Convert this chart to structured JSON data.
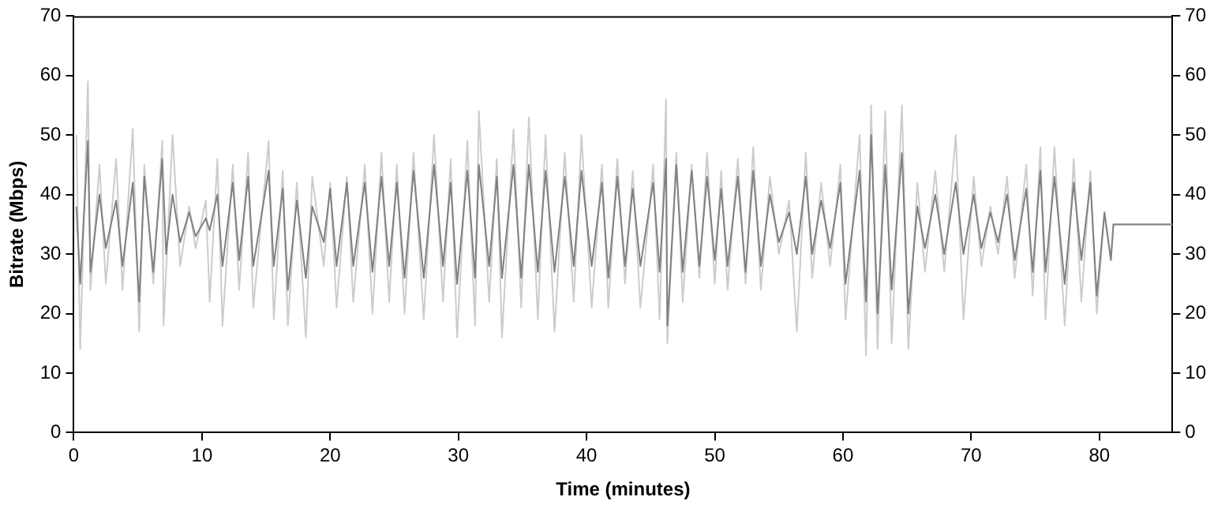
{
  "chart_data": {
    "type": "line",
    "xlabel": "Time (minutes)",
    "ylabel": "Bitrate (Mbps)",
    "xlim": [
      0,
      85.7
    ],
    "xticks": [
      0,
      10,
      20,
      30,
      40,
      50,
      60,
      70,
      80
    ],
    "ylim": [
      0,
      70
    ],
    "yticks": [
      0,
      10,
      20,
      30,
      40,
      50,
      60,
      70
    ],
    "y2lim": [
      0,
      70
    ],
    "y2ticks": [
      0,
      10,
      20,
      30,
      40,
      50,
      60,
      70
    ],
    "grid": false,
    "legend": false,
    "series": [
      {
        "color": "#cccccc",
        "x": [
          0.2,
          0.5,
          1.1,
          1.3,
          2,
          2.5,
          3.3,
          3.8,
          4.6,
          5.1,
          5.5,
          6.2,
          6.9,
          7,
          7.7,
          8.3,
          9,
          9.5,
          10.3,
          10.6,
          11.2,
          11.6,
          12.4,
          12.9,
          13.6,
          14,
          15.2,
          15.6,
          16.3,
          16.7,
          17.4,
          18.1,
          18.6,
          19.5,
          20,
          20.5,
          21.3,
          21.8,
          22.7,
          23.3,
          24,
          24.6,
          25.2,
          25.8,
          26.5,
          27.3,
          28.1,
          28.8,
          29.4,
          29.9,
          30.7,
          31.3,
          31.6,
          32.4,
          33,
          33.4,
          34.3,
          34.9,
          35.5,
          36.2,
          36.8,
          37.5,
          38.3,
          39,
          39.6,
          40.4,
          41.2,
          41.7,
          42.4,
          43,
          43.6,
          44.2,
          45.2,
          45.7,
          46.2,
          46.3,
          47,
          47.5,
          48.2,
          48.8,
          49.4,
          50,
          50.5,
          51,
          51.8,
          52.4,
          53,
          53.6,
          54.3,
          55,
          55.8,
          56.4,
          57.1,
          57.6,
          58.3,
          59,
          59.8,
          60.2,
          61.3,
          61.8,
          62.2,
          62.7,
          63.3,
          63.8,
          64.6,
          65.1,
          65.8,
          66.4,
          67.2,
          67.9,
          68.8,
          69.4,
          70.2,
          70.8,
          71.5,
          72.1,
          72.8,
          73.4,
          74.3,
          74.8,
          75.4,
          75.8,
          76.5,
          77.3,
          78,
          78.6,
          79.3,
          79.8,
          80.4,
          80.9,
          81.1,
          85.7
        ],
        "values": [
          50,
          14,
          59,
          24,
          45,
          25,
          46,
          24,
          51,
          17,
          45,
          25,
          49,
          18,
          50,
          28,
          38,
          31,
          39,
          22,
          46,
          18,
          45,
          24,
          47,
          21,
          49,
          19,
          44,
          18,
          42,
          16,
          43,
          28,
          42,
          21,
          43,
          22,
          45,
          20,
          47,
          22,
          45,
          20,
          47,
          19,
          50,
          22,
          46,
          16,
          49,
          18,
          54,
          22,
          46,
          16,
          51,
          21,
          53,
          19,
          50,
          17,
          47,
          22,
          50,
          21,
          45,
          21,
          46,
          25,
          44,
          21,
          45,
          19,
          56,
          15,
          47,
          22,
          45,
          26,
          47,
          25,
          44,
          24,
          46,
          25,
          48,
          24,
          43,
          30,
          39,
          17,
          47,
          26,
          42,
          28,
          45,
          19,
          50,
          13,
          55,
          14,
          54,
          15,
          55,
          14,
          42,
          27,
          44,
          27,
          50,
          19,
          43,
          28,
          38,
          30,
          43,
          26,
          45,
          23,
          48,
          19,
          48,
          18,
          46,
          22,
          44,
          20,
          37,
          29,
          35,
          35
        ]
      },
      {
        "color": "#808080",
        "x": [
          0.2,
          0.5,
          1.1,
          1.3,
          2,
          2.5,
          3.3,
          3.8,
          4.6,
          5.1,
          5.5,
          6.2,
          6.9,
          7.2,
          7.7,
          8.3,
          9,
          9.5,
          10.3,
          10.6,
          11.2,
          11.6,
          12.4,
          12.9,
          13.6,
          14,
          15.2,
          15.6,
          16.3,
          16.7,
          17.4,
          18.1,
          18.6,
          19.5,
          20,
          20.5,
          21.3,
          21.8,
          22.7,
          23.3,
          24,
          24.6,
          25.2,
          25.8,
          26.5,
          27.3,
          28.1,
          28.8,
          29.4,
          29.9,
          30.7,
          31.3,
          31.6,
          32.4,
          33,
          33.4,
          34.3,
          34.9,
          35.5,
          36.2,
          36.8,
          37.5,
          38.3,
          39,
          39.6,
          40.4,
          41.2,
          41.7,
          42.4,
          43,
          43.6,
          44.2,
          45.2,
          45.7,
          46.2,
          46.3,
          47,
          47.5,
          48.2,
          48.8,
          49.4,
          50,
          50.5,
          51,
          51.8,
          52.4,
          53,
          53.6,
          54.3,
          55,
          55.8,
          56.4,
          57.1,
          57.6,
          58.3,
          59,
          59.8,
          60.2,
          61.3,
          61.8,
          62.2,
          62.7,
          63.3,
          63.8,
          64.6,
          65.1,
          65.8,
          66.4,
          67.2,
          67.9,
          68.8,
          69.4,
          70.2,
          70.8,
          71.5,
          72.1,
          72.8,
          73.4,
          74.3,
          74.8,
          75.4,
          75.8,
          76.5,
          77.3,
          78,
          78.6,
          79.3,
          79.8,
          80.4,
          80.9,
          81.1,
          85.7
        ],
        "values": [
          38,
          25,
          49,
          27,
          40,
          31,
          39,
          28,
          42,
          22,
          43,
          27,
          46,
          30,
          40,
          32,
          37,
          33,
          36,
          34,
          40,
          28,
          42,
          29,
          43,
          28,
          44,
          28,
          41,
          24,
          39,
          26,
          38,
          32,
          41,
          28,
          42,
          28,
          42,
          27,
          43,
          28,
          42,
          26,
          44,
          26,
          45,
          28,
          42,
          25,
          44,
          26,
          45,
          28,
          43,
          26,
          45,
          26,
          45,
          27,
          44,
          27,
          43,
          28,
          44,
          28,
          42,
          26,
          43,
          28,
          41,
          28,
          42,
          27,
          46,
          18,
          45,
          27,
          44,
          28,
          43,
          29,
          41,
          28,
          43,
          27,
          44,
          28,
          40,
          32,
          37,
          30,
          43,
          30,
          39,
          31,
          42,
          25,
          44,
          22,
          50,
          20,
          45,
          24,
          47,
          20,
          38,
          31,
          40,
          30,
          42,
          30,
          40,
          31,
          37,
          32,
          40,
          29,
          41,
          27,
          44,
          27,
          43,
          25,
          42,
          29,
          42,
          23,
          37,
          29,
          35,
          35
        ]
      }
    ]
  }
}
